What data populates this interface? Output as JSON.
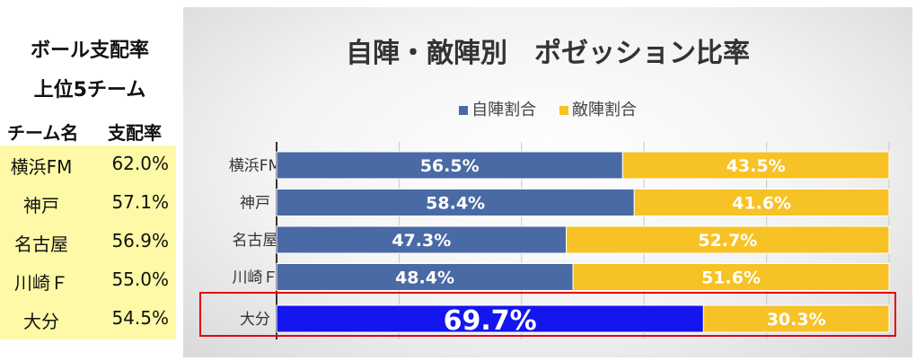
{
  "left_panel": {
    "title_line1": "ボール支配率",
    "title_line2": "上位5チーム",
    "col_team": "チーム名",
    "col_rate": "支配率",
    "rows": [
      {
        "team": "横浜FM",
        "rate": "62.0%"
      },
      {
        "team": "神戸",
        "rate": "57.1%"
      },
      {
        "team": "名古屋",
        "rate": "56.9%"
      },
      {
        "team": "川崎Ｆ",
        "rate": "55.0%"
      },
      {
        "team": "大分",
        "rate": "54.5%"
      }
    ]
  },
  "colors": {
    "own_half": "#4a6aa5",
    "opp_half": "#f7c225",
    "highlight_bar": "#1515f0",
    "highlight_border": "#e8000e",
    "table_bg": "#fdf9a6"
  },
  "chart_data": {
    "type": "bar",
    "orientation": "horizontal",
    "stacked": true,
    "title": "自陣・敵陣別　ポゼッション比率",
    "categories": [
      "横浜FM",
      "神戸",
      "名古屋",
      "川崎Ｆ",
      "大分"
    ],
    "series": [
      {
        "name": "自陣割合",
        "values": [
          56.5,
          58.4,
          47.3,
          48.4,
          69.7
        ],
        "labels": [
          "56.5%",
          "58.4%",
          "47.3%",
          "48.4%",
          "69.7%"
        ]
      },
      {
        "name": "敵陣割合",
        "values": [
          43.5,
          41.6,
          52.7,
          51.6,
          30.3
        ],
        "labels": [
          "43.5%",
          "41.6%",
          "52.7%",
          "51.6%",
          "30.3%"
        ]
      }
    ],
    "xlim": [
      0,
      100
    ],
    "grid": true,
    "legend": "top",
    "highlighted_category": "大分"
  }
}
